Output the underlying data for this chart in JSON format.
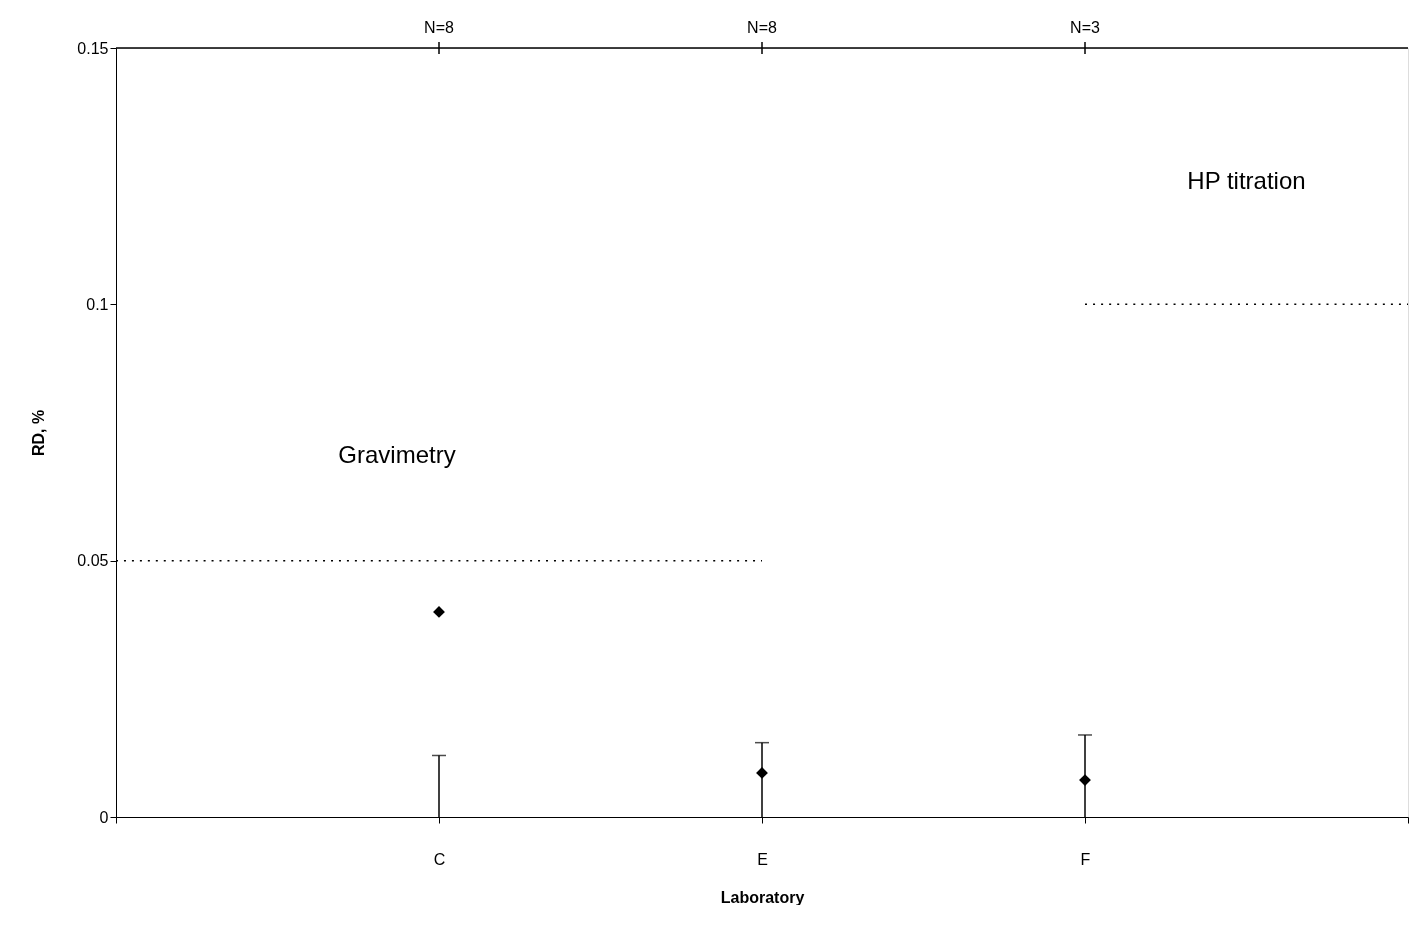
{
  "chart_data": {
    "type": "scatter",
    "xlabel": "Laboratory",
    "ylabel": "RD, %",
    "categories": [
      null,
      "C",
      "E",
      "F",
      null
    ],
    "ylim": [
      0,
      0.15
    ],
    "yticks": [
      0,
      0.05,
      0.1,
      0.15
    ],
    "grid": false,
    "marker": "diamond",
    "series": [
      {
        "color": "#000000",
        "values": [
          null,
          0.04,
          0.0086,
          0.0072,
          null
        ],
        "errors": [
          null,
          [
            0,
            0.012
          ],
          [
            0,
            0.0145
          ],
          [
            0,
            0.016
          ],
          null
        ]
      },
      {
        "type": "line",
        "line_style": "dotted",
        "marker": "none",
        "color": "#000000",
        "values": [
          0.05,
          0.05,
          0.05,
          null,
          null
        ]
      },
      {
        "type": "line",
        "line_style": "dotted",
        "marker": "none",
        "color": "#000000",
        "values": [
          null,
          null,
          null,
          0.1,
          0.1
        ]
      }
    ],
    "annotations": [
      {
        "text": "N=8",
        "x": "C"
      },
      {
        "text": "N=8",
        "x": "E"
      },
      {
        "text": "N=3",
        "x": "F"
      },
      "Gravimetry",
      "HP titration"
    ]
  }
}
